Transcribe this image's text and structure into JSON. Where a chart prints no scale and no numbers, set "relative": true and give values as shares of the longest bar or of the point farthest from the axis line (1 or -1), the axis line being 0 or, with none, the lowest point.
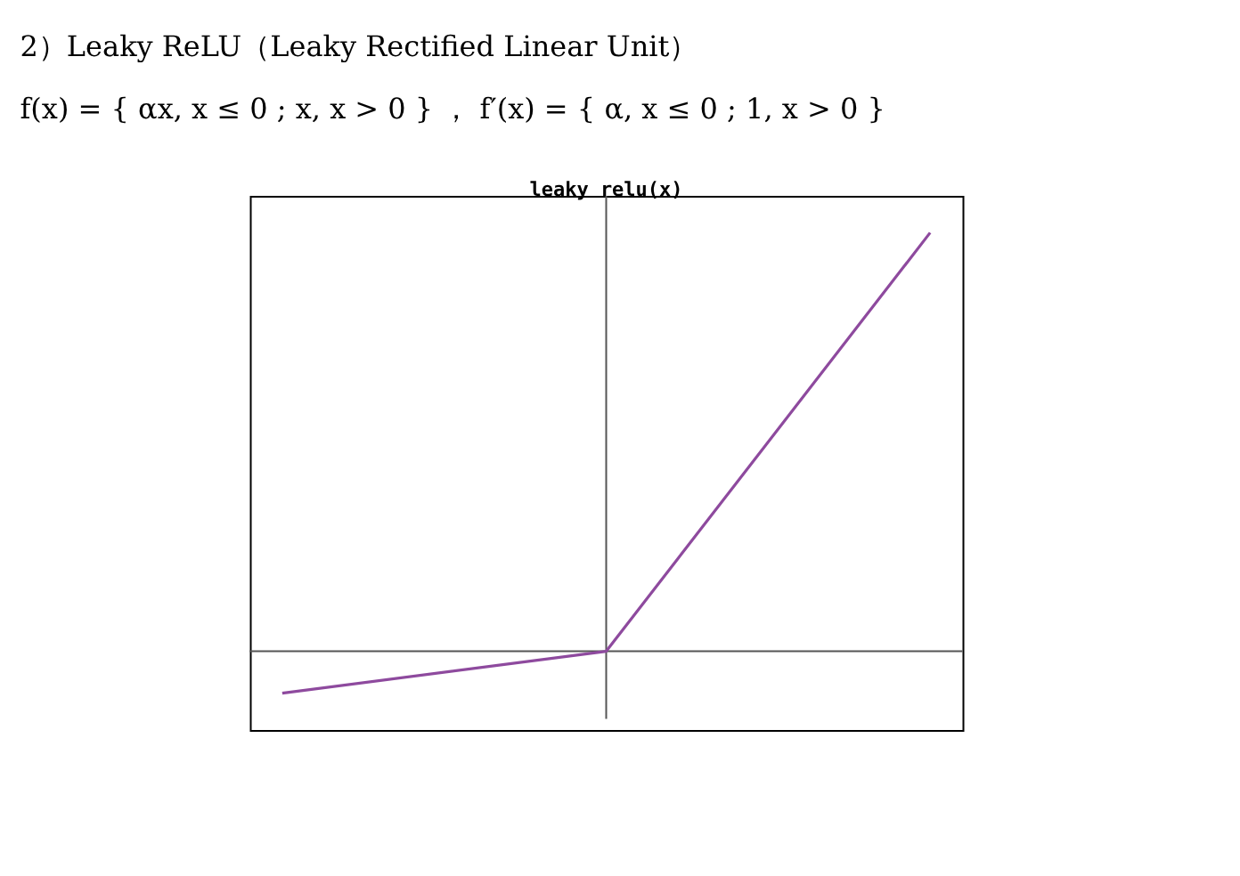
{
  "chart_data": {
    "type": "line",
    "title": "leaky relu(x)",
    "relative": true,
    "categories": [
      null,
      null,
      null
    ],
    "series": [
      {
        "color": "#8e4a9e",
        "values": [
          -0.1,
          0,
          1
        ]
      }
    ],
    "annotations": [
      "2）Leaky ReLU（Leaky Rectified Linear Unit）",
      "f(x) = { αx, x ≤ 0 ; x, x > 0 } ，  f′(x) = { α, x ≤ 0 ; 1, x > 0 }"
    ]
  }
}
